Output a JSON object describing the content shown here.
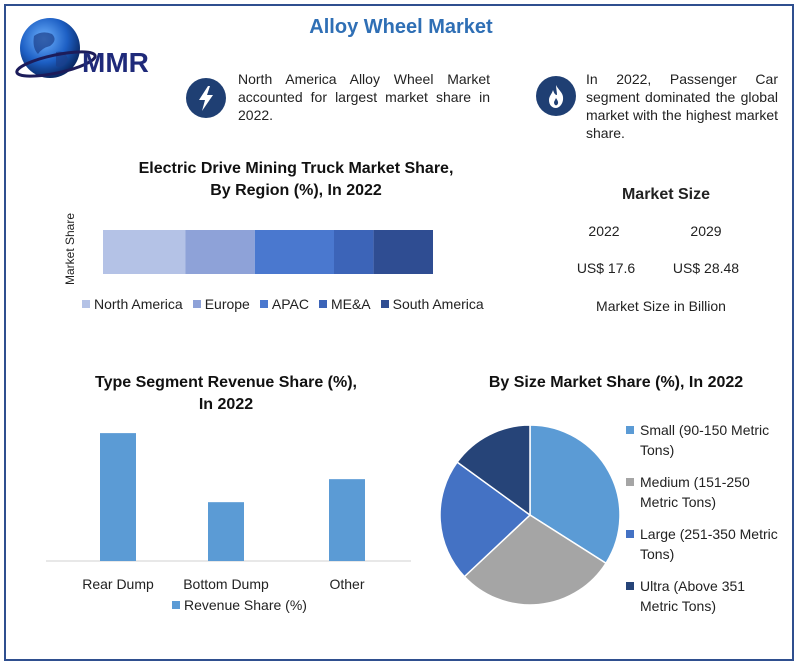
{
  "header": {
    "title": "Alloy Wheel Market",
    "logo_text": "MMR"
  },
  "info_cards": [
    {
      "icon": "lightning-icon",
      "text": "North America Alloy Wheel Market accounted for largest market share in 2022."
    },
    {
      "icon": "flame-icon",
      "text": "In 2022, Passenger Car segment dominated the global market with the highest market share."
    }
  ],
  "market_size": {
    "title": "Market Size",
    "years": [
      "2022",
      "2029"
    ],
    "values": [
      "US$ 17.6",
      "US$ 28.48"
    ],
    "unit_label": "Market Size in Billion"
  },
  "colors": {
    "title": "#2f6fb5",
    "north_america": "#b4c2e6",
    "europe": "#8ea2d8",
    "apac": "#4a78cf",
    "mea": "#3c64b8",
    "south_america": "#2f4d92",
    "bar": "#5b9bd5",
    "small": "#5b9bd5",
    "medium": "#a5a5a5",
    "large": "#4472c4",
    "ultra": "#264478"
  },
  "chart_data": [
    {
      "type": "bar",
      "orientation": "horizontal-stacked",
      "title_lines": [
        "Electric Drive Mining Truck Market Share,",
        "By Region (%), In 2022"
      ],
      "ylabel": "Market Share",
      "categories": [
        "Market Share"
      ],
      "series": [
        {
          "name": "North America",
          "values": [
            25
          ]
        },
        {
          "name": "Europe",
          "values": [
            21
          ]
        },
        {
          "name": "APAC",
          "values": [
            24
          ]
        },
        {
          "name": "ME&A",
          "values": [
            12
          ]
        },
        {
          "name": "South America",
          "values": [
            18
          ]
        }
      ],
      "legend": "bottom"
    },
    {
      "type": "bar",
      "title_lines": [
        "Type Segment Revenue Share (%),",
        "In 2022"
      ],
      "categories": [
        "Rear Dump",
        "Bottom Dump",
        "Other"
      ],
      "series": [
        {
          "name": "Revenue Share (%)",
          "values": [
            50,
            23,
            32
          ]
        }
      ],
      "ylim": [
        0,
        52
      ],
      "legend": "bottom"
    },
    {
      "type": "pie",
      "title": "By Size Market Share (%), In 2022",
      "labels": [
        "Small (90-150 Metric Tons)",
        "Medium (151-250 Metric Tons)",
        "Large (251-350 Metric Tons)",
        "Ultra (Above 351 Metric Tons)"
      ],
      "legend_lines": [
        [
          "Small (90-150 Metric",
          "Tons)"
        ],
        [
          "Medium (151-250",
          "Metric Tons)"
        ],
        [
          "Large (251-350 Metric",
          "Tons)"
        ],
        [
          "Ultra (Above 351",
          "Metric Tons)"
        ]
      ],
      "values": [
        34,
        29,
        22,
        15
      ],
      "legend": "right"
    }
  ]
}
